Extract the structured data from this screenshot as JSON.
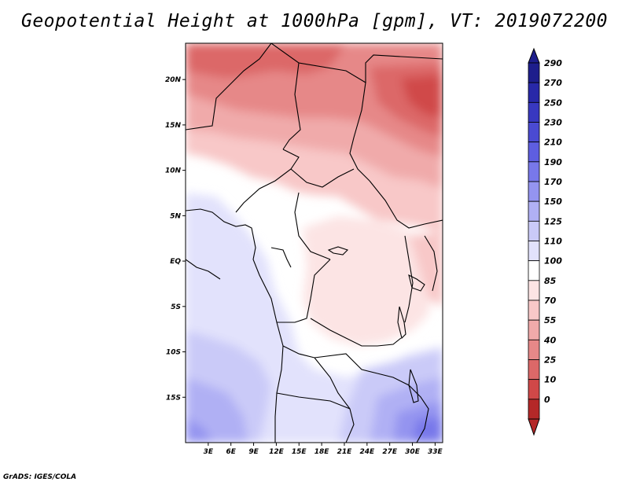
{
  "title": "Geopotential Height at 1000hPa [gpm], VT: 2019072200",
  "footer": "GrADS: IGES/COLA",
  "map": {
    "lon_range": [
      0,
      34
    ],
    "lat_range": [
      -20,
      24
    ],
    "lat_ticks": [
      {
        "value": 20,
        "label": "20N"
      },
      {
        "value": 15,
        "label": "15N"
      },
      {
        "value": 10,
        "label": "10N"
      },
      {
        "value": 5,
        "label": "5N"
      },
      {
        "value": 0,
        "label": "EQ"
      },
      {
        "value": -5,
        "label": "5S"
      },
      {
        "value": -10,
        "label": "10S"
      },
      {
        "value": -15,
        "label": "15S"
      }
    ],
    "lon_ticks": [
      {
        "value": 3,
        "label": "3E"
      },
      {
        "value": 6,
        "label": "6E"
      },
      {
        "value": 9,
        "label": "9E"
      },
      {
        "value": 12,
        "label": "12E"
      },
      {
        "value": 15,
        "label": "15E"
      },
      {
        "value": 18,
        "label": "18E"
      },
      {
        "value": 21,
        "label": "21E"
      },
      {
        "value": 24,
        "label": "24E"
      },
      {
        "value": 27,
        "label": "27E"
      },
      {
        "value": 30,
        "label": "30E"
      },
      {
        "value": 33,
        "label": "33E"
      }
    ]
  },
  "colorbar": {
    "levels": [
      {
        "label": "290",
        "color": "#1e1e8c"
      },
      {
        "label": "270",
        "color": "#2828a8"
      },
      {
        "label": "250",
        "color": "#3838c0"
      },
      {
        "label": "230",
        "color": "#4a4ad2"
      },
      {
        "label": "210",
        "color": "#5e5ee0"
      },
      {
        "label": "190",
        "color": "#7878ea"
      },
      {
        "label": "170",
        "color": "#9494f0"
      },
      {
        "label": "150",
        "color": "#b0b0f4"
      },
      {
        "label": "125",
        "color": "#cacaf8"
      },
      {
        "label": "110",
        "color": "#e2e2fc"
      },
      {
        "label": "100",
        "color": "#ffffff"
      },
      {
        "label": "85",
        "color": "#fce4e4"
      },
      {
        "label": "70",
        "color": "#f8c8c8"
      },
      {
        "label": "55",
        "color": "#f0aaaa"
      },
      {
        "label": "40",
        "color": "#e68888"
      },
      {
        "label": "25",
        "color": "#dc6868"
      },
      {
        "label": "10",
        "color": "#d04848"
      },
      {
        "label": "0",
        "color": "#b42828"
      }
    ],
    "bottom_color": "#b42828",
    "top_color": "#1e1e8c"
  }
}
